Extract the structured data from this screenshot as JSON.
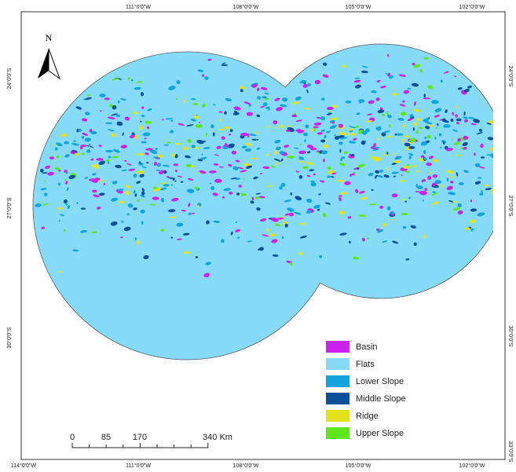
{
  "map": {
    "north": "N",
    "top_labels": [
      "111°0'0\"W",
      "108°0'0\"W",
      "105°0'0\"W",
      "102°0'0\"W"
    ],
    "bottom_labels": [
      "114°0'0\"W",
      "111°0'0\"W",
      "108°0'0\"W",
      "105°0'0\"W",
      "102°0'0\"W"
    ],
    "left_labels": [
      "24°0'0\"S",
      "27°0'0\"S",
      "30°0'0\"S"
    ],
    "right_labels": [
      "24°0'0\"S",
      "27°0'0\"S",
      "30°0'0\"S",
      "33°0'0\"S"
    ],
    "legend": [
      {
        "label": "Basin",
        "color": "#cc22ee"
      },
      {
        "label": "Flats",
        "color": "#86dcf8"
      },
      {
        "label": "Lower Slope",
        "color": "#12a4dc"
      },
      {
        "label": "Middle Slope",
        "color": "#0a4f9a"
      },
      {
        "label": "Ridge",
        "color": "#e2e21a"
      },
      {
        "label": "Upper Slope",
        "color": "#5fe51c"
      }
    ],
    "scale_labels": [
      "0",
      "85",
      "170",
      "340 Km"
    ]
  }
}
